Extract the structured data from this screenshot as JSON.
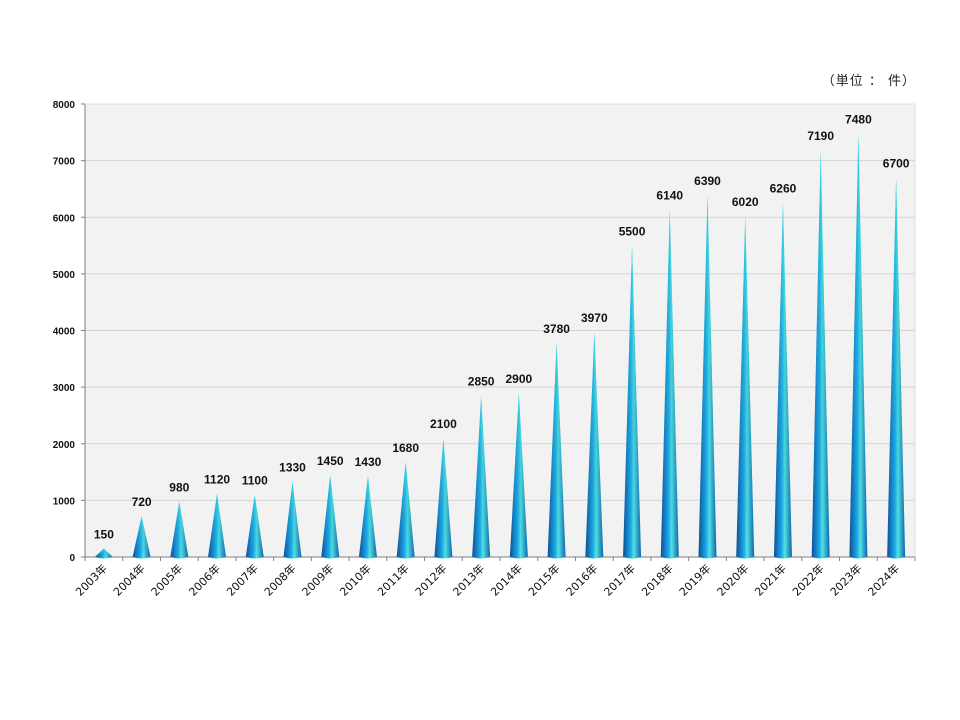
{
  "unit_label": "（単位 ： 件）",
  "chart_data": {
    "type": "bar",
    "categories": [
      "2003年",
      "2004年",
      "2005年",
      "2006年",
      "2007年",
      "2008年",
      "2009年",
      "2010年",
      "2011年",
      "2012年",
      "2013年",
      "2014年",
      "2015年",
      "2016年",
      "2017年",
      "2018年",
      "2019年",
      "2020年",
      "2021年",
      "2022年",
      "2023年",
      "2024年"
    ],
    "values": [
      150,
      720,
      980,
      1120,
      1100,
      1330,
      1450,
      1430,
      1680,
      2100,
      2850,
      2900,
      3780,
      3970,
      5500,
      6140,
      6390,
      6020,
      6260,
      7190,
      7480,
      6700
    ],
    "ylim": [
      0,
      8000
    ],
    "yticks": [
      0,
      1000,
      2000,
      3000,
      4000,
      5000,
      6000,
      7000,
      8000
    ],
    "grid": true,
    "bar_shape": "cone",
    "colors": {
      "top": "#3fe0d8",
      "mid": "#1fa9e8",
      "bottom": "#0b5fa8",
      "plot_bg": "#f2f2f2",
      "grid": "#d4d4d4",
      "axis": "#808080"
    }
  }
}
